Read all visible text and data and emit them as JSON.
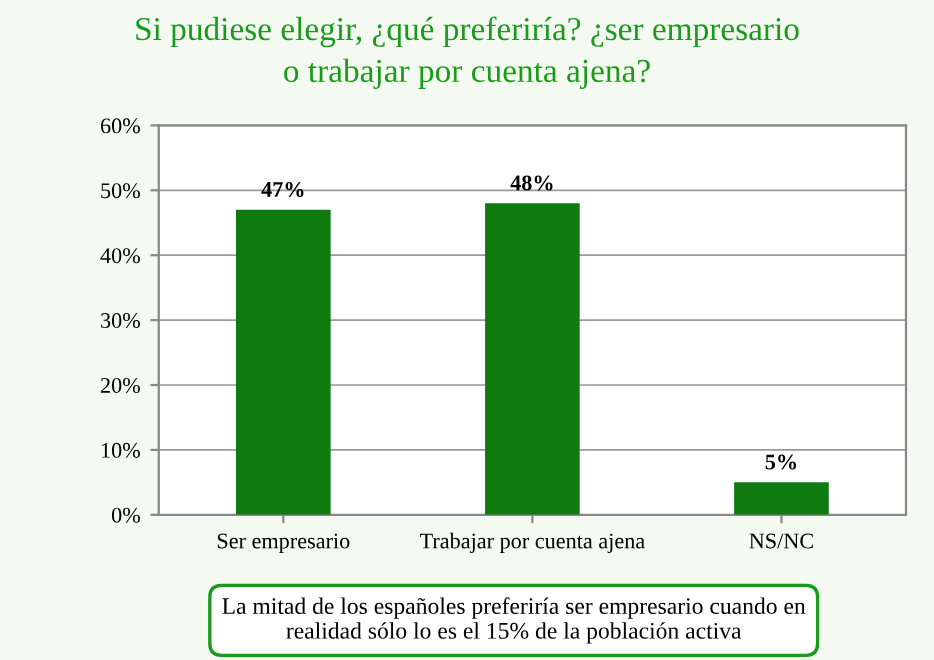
{
  "chart_data": {
    "type": "bar",
    "title": "Si pudiese elegir, ¿qué preferiría? ¿ser empresario\no trabajar por cuenta ajena?",
    "categories": [
      "Ser empresario",
      "Trabajar por cuenta ajena",
      "NS/NC"
    ],
    "values": [
      47,
      48,
      5
    ],
    "color": "#0f7a0f",
    "value_labels": [
      "47%",
      "48%",
      "5%"
    ],
    "ylim": [
      0,
      60
    ],
    "yticks": [
      {
        "value": 0,
        "label": "0%"
      },
      {
        "value": 10,
        "label": "10%"
      },
      {
        "value": 20,
        "label": "20%"
      },
      {
        "value": 30,
        "label": "30%"
      },
      {
        "value": 40,
        "label": "40%"
      },
      {
        "value": 50,
        "label": "50%"
      },
      {
        "value": 60,
        "label": "60%"
      }
    ],
    "grid": "y",
    "annotations": [
      "La mitad de los españoles preferiría ser empresario cuando en\nrealidad sólo lo es el 15% de la población activa"
    ]
  }
}
